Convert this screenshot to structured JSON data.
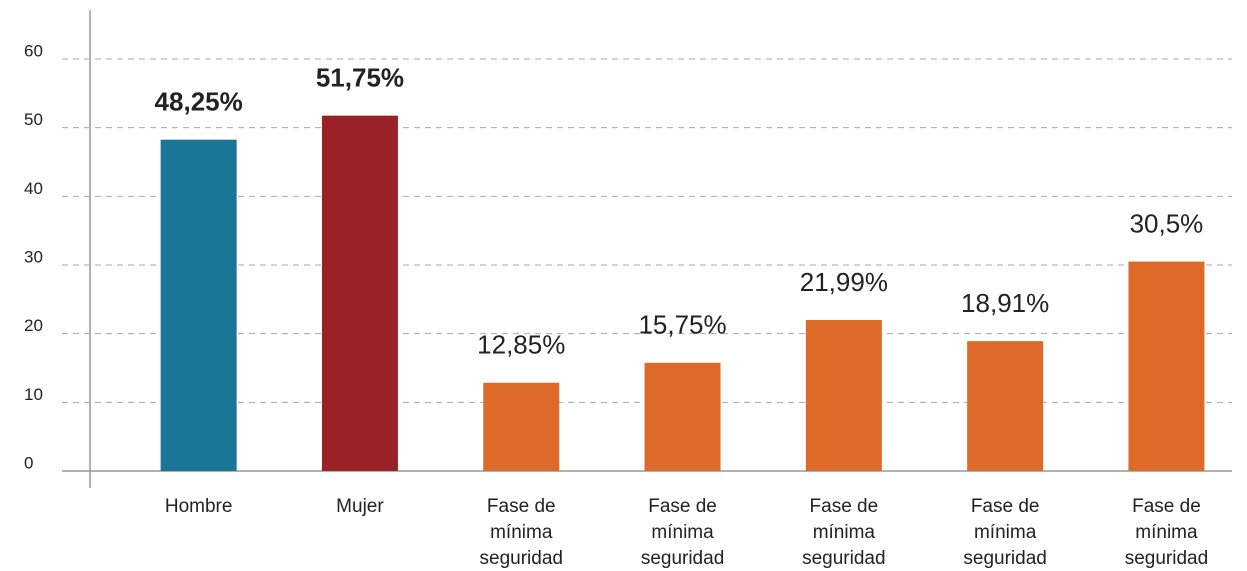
{
  "chart_data": {
    "type": "bar",
    "categories": [
      "Hombre",
      "Mujer",
      "Fase de mínima seguridad",
      "Fase de mínima seguridad",
      "Fase de mínima seguridad",
      "Fase de mínima seguridad",
      "Fase de mínima seguridad"
    ],
    "values": [
      48.25,
      51.75,
      12.85,
      15.75,
      21.99,
      18.91,
      30.5
    ],
    "value_labels": [
      "48,25%",
      "51,75%",
      "12,85%",
      "15,75%",
      "21,99%",
      "18,91%",
      "30,5%"
    ],
    "colors": [
      "#1b7596",
      "#9a2128",
      "#de6a2a",
      "#de6a2a",
      "#de6a2a",
      "#de6a2a",
      "#de6a2a"
    ],
    "ylim": [
      0,
      60
    ],
    "yticks": [
      0,
      10,
      20,
      30,
      40,
      50,
      60
    ],
    "grid": true
  }
}
